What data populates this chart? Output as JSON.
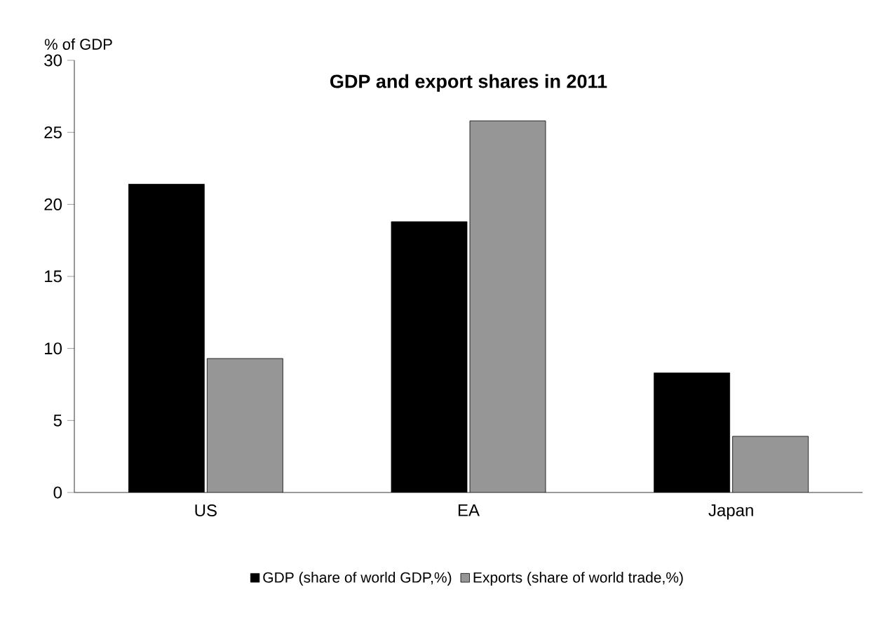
{
  "chart_data": {
    "type": "bar",
    "title": "GDP and export shares in 2011",
    "ylabel": "% of GDP",
    "categories": [
      "US",
      "EA",
      "Japan"
    ],
    "series": [
      {
        "name": "GDP (share of world GDP,%)",
        "color": "#000000",
        "values": [
          21.4,
          18.8,
          8.3
        ]
      },
      {
        "name": "Exports (share of world trade,%)",
        "color": "#969696",
        "values": [
          9.3,
          25.8,
          3.9
        ]
      }
    ],
    "ylim": [
      0,
      30
    ],
    "yticks": [
      0,
      5,
      10,
      15,
      20,
      25,
      30
    ],
    "grid": false,
    "legend": "bottom"
  }
}
